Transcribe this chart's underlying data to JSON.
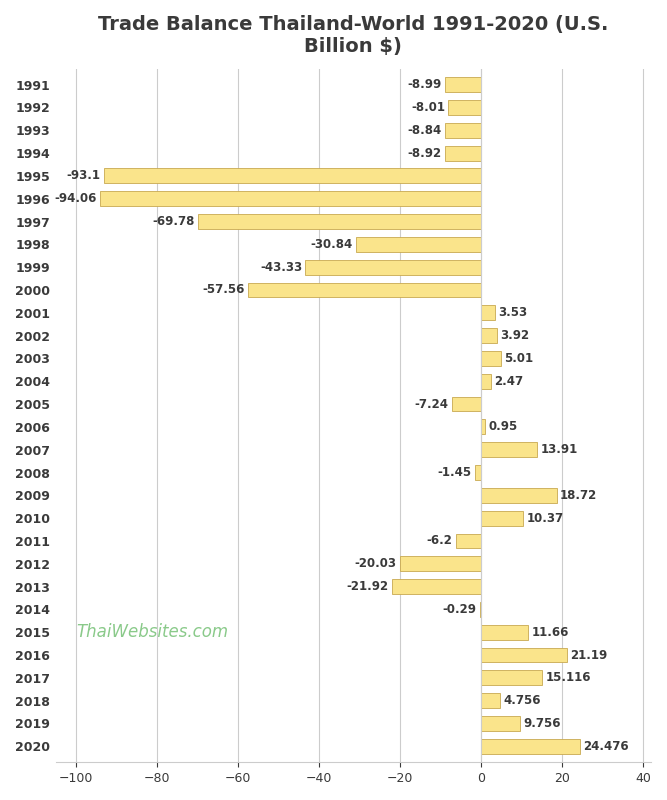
{
  "title": "Trade Balance Thailand-World 1991-2020 (U.S.\nBillion $)",
  "years": [
    1991,
    1992,
    1993,
    1994,
    1995,
    1996,
    1997,
    1998,
    1999,
    2000,
    2001,
    2002,
    2003,
    2004,
    2005,
    2006,
    2007,
    2008,
    2009,
    2010,
    2011,
    2012,
    2013,
    2014,
    2015,
    2016,
    2017,
    2018,
    2019,
    2020
  ],
  "values": [
    -8.99,
    -8.01,
    -8.84,
    -8.92,
    -93.1,
    -94.06,
    -69.78,
    -30.84,
    -43.33,
    -57.56,
    3.53,
    3.92,
    5.01,
    2.47,
    -7.24,
    0.95,
    13.91,
    -1.45,
    18.72,
    10.37,
    -6.2,
    -20.03,
    -21.92,
    -0.29,
    11.66,
    21.19,
    15.116,
    4.756,
    9.756,
    24.476
  ],
  "bar_color": "#FAE48B",
  "bar_edge_color": "#C8A951",
  "label_color": "#3A3A3A",
  "title_color": "#3A3A3A",
  "watermark_text": "ThaiWebsites.com",
  "watermark_color": "#7DC47D",
  "xlim": [
    -105,
    42
  ],
  "xticks": [
    -100,
    -80,
    -60,
    -40,
    -20,
    0,
    20,
    40
  ],
  "background_color": "#FFFFFF",
  "grid_color": "#CCCCCC",
  "figsize": [
    6.67,
    8.0
  ],
  "dpi": 100,
  "bar_height": 0.65
}
